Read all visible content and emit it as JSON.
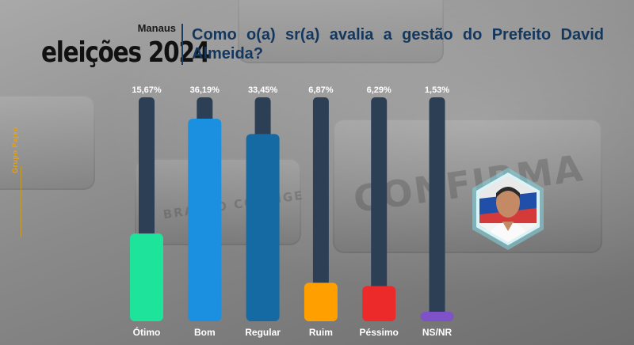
{
  "header": {
    "city": "Manaus",
    "brand": "eleições 2024",
    "question": "Como o(a) sr(a) avalia a gestão do Prefeito David Almeida?"
  },
  "side_label": "Grupo Pajeú",
  "colors": {
    "track": "#2c3f55",
    "title": "#14375e",
    "Ótimo": "#1ee39b",
    "Bom": "#1b8fe0",
    "Regular": "#156aa3",
    "Ruim": "#ffa000",
    "Péssimo": "#ec2a2a",
    "NS/NR": "#7e52c9"
  },
  "chart_data": {
    "type": "bar",
    "title": "Como o(a) sr(a) avalia a gestão do Prefeito David Almeida?",
    "categories": [
      "Ótimo",
      "Bom",
      "Regular",
      "Ruim",
      "Péssimo",
      "NS/NR"
    ],
    "values": [
      15.67,
      36.19,
      33.45,
      6.87,
      6.29,
      1.53
    ],
    "value_labels": [
      "15,67%",
      "36,19%",
      "33,45%",
      "6,87%",
      "6,29%",
      "1,53%"
    ],
    "xlabel": "",
    "ylabel": "",
    "ylim": [
      0,
      40
    ],
    "grid": false,
    "legend": "none"
  }
}
